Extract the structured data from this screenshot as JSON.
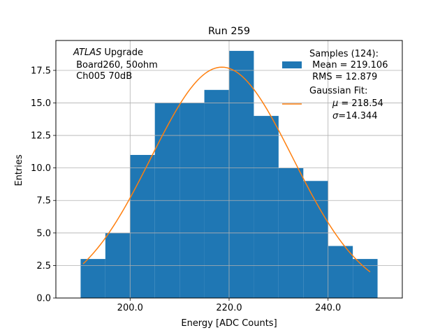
{
  "chart_data": {
    "type": "bar",
    "title": "Run 259",
    "xlabel": "Energy [ADC Counts]",
    "ylabel": "Entries",
    "xlim": [
      185,
      255
    ],
    "ylim": [
      0,
      19.8
    ],
    "grid": true,
    "xticks": [
      200,
      220,
      240
    ],
    "xtick_labels": [
      "200.0",
      "220.0",
      "240.0"
    ],
    "yticks": [
      0,
      2.5,
      5,
      7.5,
      10,
      12.5,
      15,
      17.5
    ],
    "ytick_labels": [
      "0.0",
      "2.5",
      "5.0",
      "7.5",
      "10.0",
      "12.5",
      "15.0",
      "17.5"
    ],
    "annotation": {
      "italic": "ATLAS",
      "line1_rest": " Upgrade",
      "line2": " Board260, 50ohm",
      "line3": " Ch005 70dB"
    },
    "bins": [
      {
        "x0": 190,
        "x1": 195,
        "count": 3
      },
      {
        "x0": 195,
        "x1": 200,
        "count": 5
      },
      {
        "x0": 200,
        "x1": 205,
        "count": 11
      },
      {
        "x0": 205,
        "x1": 210,
        "count": 15
      },
      {
        "x0": 210,
        "x1": 215,
        "count": 15
      },
      {
        "x0": 215,
        "x1": 220,
        "count": 16
      },
      {
        "x0": 220,
        "x1": 225,
        "count": 19
      },
      {
        "x0": 225,
        "x1": 230,
        "count": 14
      },
      {
        "x0": 230,
        "x1": 235,
        "count": 10
      },
      {
        "x0": 235,
        "x1": 240,
        "count": 9
      },
      {
        "x0": 240,
        "x1": 245,
        "count": 4
      },
      {
        "x0": 245,
        "x1": 250,
        "count": 3
      }
    ],
    "fit": {
      "mu": 218.54,
      "sigma": 14.344,
      "amplitude": 17.75,
      "x_range": [
        190.5,
        248.5
      ]
    },
    "colors": {
      "bars": "#1f77b4",
      "fit": "#ff7f0e",
      "grid": "#b0b0b0"
    },
    "legend": {
      "placement": "top-right",
      "samples_line1": "Samples (124):",
      "samples_line2": " Mean = 219.106",
      "samples_line3": " RMS = 12.879",
      "fit_line1": "Gaussian Fit:",
      "fit_mu_rest": " = 218.54",
      "fit_sigma_rest": "=14.344"
    }
  }
}
